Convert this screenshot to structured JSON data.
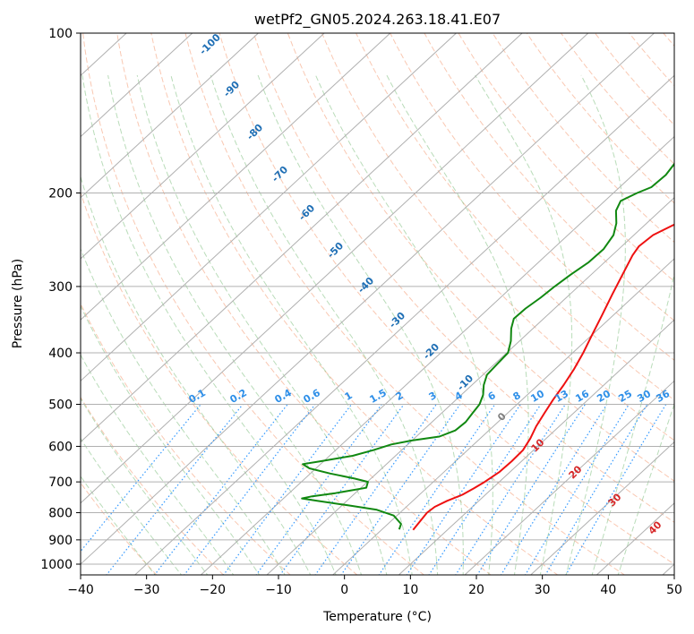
{
  "chart_data": {
    "type": "line",
    "title": "wetPf2_GN05.2024.263.18.41.E07",
    "xlabel": "Temperature (°C)",
    "ylabel": "Pressure (hPa)",
    "xlim": [
      -40,
      50
    ],
    "ylim": [
      1050,
      100
    ],
    "y_scale": "log",
    "x_ticks": [
      "−40",
      "−30",
      "−20",
      "−10",
      "0",
      "10",
      "20",
      "30",
      "40",
      "50"
    ],
    "y_ticks": [
      {
        "p": 100,
        "label": "100"
      },
      {
        "p": 200,
        "label": "200"
      },
      {
        "p": 300,
        "label": "300"
      },
      {
        "p": 400,
        "label": "400"
      },
      {
        "p": 500,
        "label": "500"
      },
      {
        "p": 600,
        "label": "600"
      },
      {
        "p": 700,
        "label": "700"
      },
      {
        "p": 800,
        "label": "800"
      },
      {
        "p": 900,
        "label": "900"
      },
      {
        "p": 1000,
        "label": "1000"
      }
    ],
    "grid": true,
    "series": [
      {
        "kind": "temperature",
        "color": "#ee1111",
        "points": [
          [
            862,
            4.8
          ],
          [
            800,
            4.1
          ],
          [
            780,
            4.3
          ],
          [
            760,
            5.2
          ],
          [
            740,
            6.5
          ],
          [
            720,
            7.2
          ],
          [
            700,
            7.8
          ],
          [
            670,
            8.4
          ],
          [
            640,
            8.5
          ],
          [
            610,
            8.4
          ],
          [
            580,
            7.6
          ],
          [
            550,
            6.5
          ],
          [
            520,
            5.6
          ],
          [
            490,
            4.7
          ],
          [
            460,
            3.9
          ],
          [
            430,
            2.9
          ],
          [
            400,
            1.6
          ],
          [
            370,
            0.0
          ],
          [
            340,
            -1.7
          ],
          [
            310,
            -3.6
          ],
          [
            280,
            -5.6
          ],
          [
            262,
            -6.9
          ],
          [
            252,
            -7.4
          ],
          [
            240,
            -7.1
          ],
          [
            230,
            -5.7
          ],
          [
            220,
            -3.0
          ],
          [
            210,
            0.2
          ],
          [
            200,
            3.1
          ],
          [
            180,
            8.1
          ],
          [
            160,
            12.1
          ],
          [
            140,
            16.1
          ],
          [
            120,
            20.7
          ],
          [
            110,
            23.6
          ],
          [
            104,
            25.6
          ],
          [
            100,
            26.6
          ]
        ]
      },
      {
        "kind": "dewpoint",
        "color": "#118811",
        "points": [
          [
            860,
            2.6
          ],
          [
            840,
            2.0
          ],
          [
            810,
            -0.5
          ],
          [
            790,
            -4.0
          ],
          [
            775,
            -9.0
          ],
          [
            760,
            -14.5
          ],
          [
            752,
            -17.2
          ],
          [
            745,
            -16.0
          ],
          [
            735,
            -13.0
          ],
          [
            718,
            -9.2
          ],
          [
            700,
            -9.9
          ],
          [
            690,
            -12.5
          ],
          [
            675,
            -17.0
          ],
          [
            660,
            -21.0
          ],
          [
            648,
            -22.7
          ],
          [
            640,
            -20.5
          ],
          [
            625,
            -16.5
          ],
          [
            610,
            -14.3
          ],
          [
            595,
            -12.5
          ],
          [
            585,
            -10.0
          ],
          [
            575,
            -6.5
          ],
          [
            560,
            -5.1
          ],
          [
            540,
            -4.9
          ],
          [
            520,
            -5.3
          ],
          [
            500,
            -5.7
          ],
          [
            480,
            -6.7
          ],
          [
            460,
            -8.2
          ],
          [
            440,
            -9.4
          ],
          [
            420,
            -9.6
          ],
          [
            400,
            -9.8
          ],
          [
            380,
            -11.3
          ],
          [
            360,
            -13.3
          ],
          [
            345,
            -14.5
          ],
          [
            330,
            -14.4
          ],
          [
            315,
            -13.9
          ],
          [
            300,
            -13.6
          ],
          [
            285,
            -13.1
          ],
          [
            270,
            -12.4
          ],
          [
            255,
            -12.3
          ],
          [
            240,
            -13.1
          ],
          [
            228,
            -14.6
          ],
          [
            216,
            -16.7
          ],
          [
            207,
            -17.6
          ],
          [
            200,
            -16.4
          ],
          [
            195,
            -15.2
          ],
          [
            185,
            -15.0
          ],
          [
            175,
            -15.6
          ],
          [
            168,
            -15.9
          ],
          [
            160,
            -16.0
          ],
          [
            150,
            -15.8
          ],
          [
            140,
            -15.6
          ],
          [
            130,
            -14.8
          ],
          [
            120,
            -13.4
          ],
          [
            112,
            -11.4
          ],
          [
            106,
            -9.6
          ],
          [
            100,
            -8.0
          ]
        ]
      }
    ],
    "dry_adiabat_labels": [
      "-100",
      "-90",
      "-80",
      "-70",
      "-60",
      "-50",
      "-40",
      "-30",
      "-20",
      "-10"
    ],
    "mixing_ratio_labels": [
      "0.1",
      "0.2",
      "0.4",
      "0.6",
      "1",
      "1.5",
      "2",
      "3",
      "4",
      "6",
      "8",
      "10",
      "13",
      "16",
      "20",
      "25",
      "30",
      "36"
    ],
    "moist_adiabat_labels": [
      "0",
      "10",
      "20",
      "30",
      "40"
    ],
    "colors": {
      "isotherm": "#b0b0b0",
      "dry_adiabat": "#f5a37f",
      "moist_adiabat": "#7fbf7f",
      "mixing_ratio": "#3399ff",
      "dry_label": "#1f6fb5",
      "moist_label": "#d62728",
      "zero_label": "#808080",
      "mixing_label": "#2e8fe8",
      "ptheta_curve": "#d9c3a5"
    }
  }
}
